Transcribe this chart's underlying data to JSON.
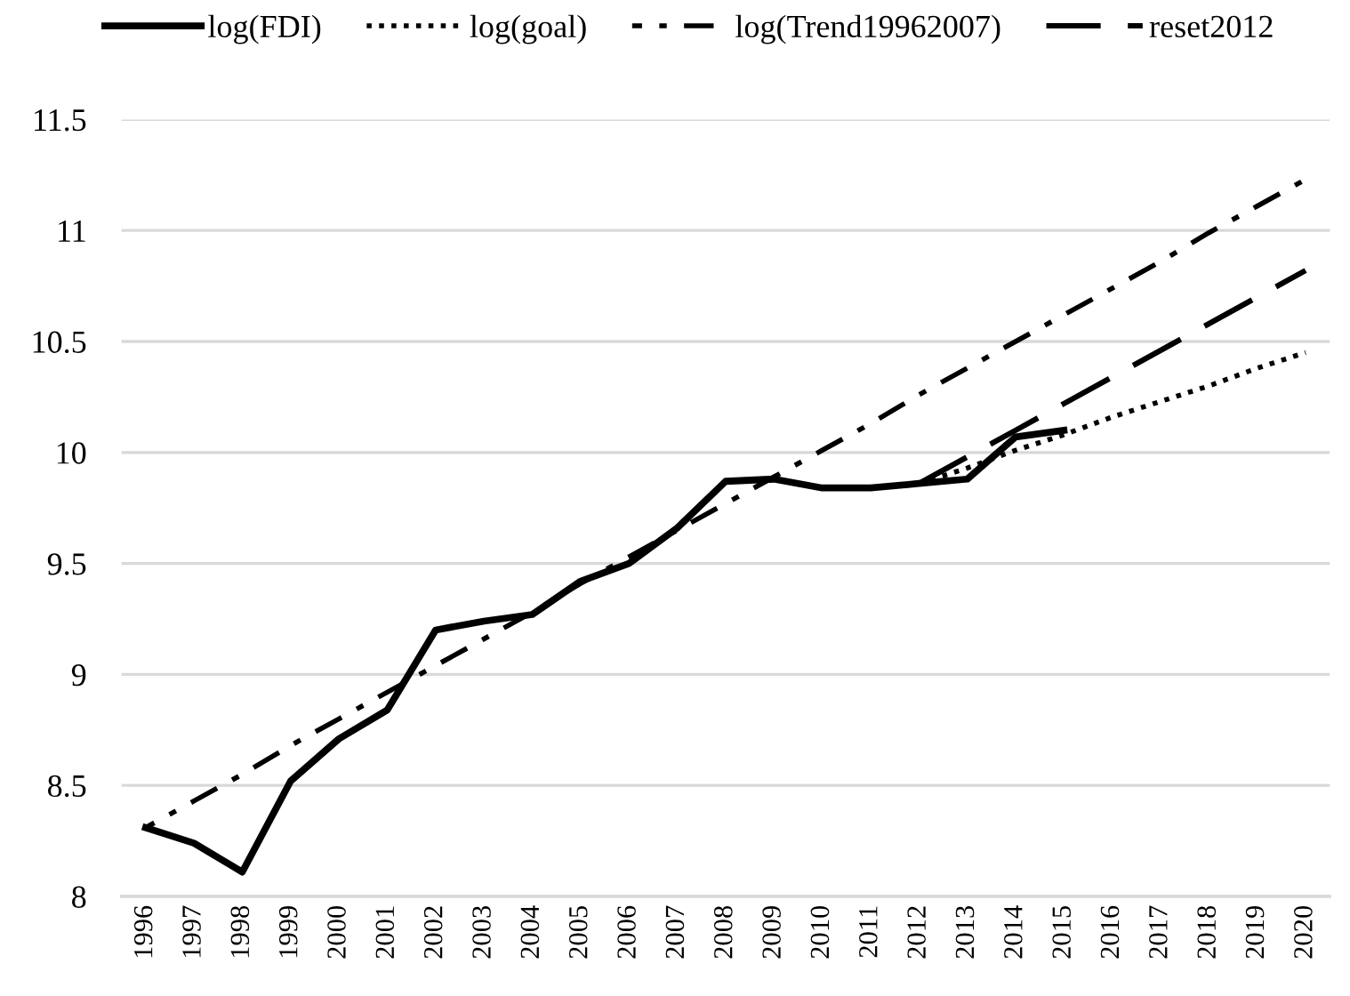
{
  "chart_data": {
    "type": "line",
    "categories": [
      "1996",
      "1997",
      "1998",
      "1999",
      "2000",
      "2001",
      "2002",
      "2003",
      "2004",
      "2005",
      "2006",
      "2007",
      "2008",
      "2009",
      "2010",
      "2011",
      "2012",
      "2013",
      "2014",
      "2015",
      "2016",
      "2017",
      "2018",
      "2019",
      "2020"
    ],
    "series": [
      {
        "name": "log(FDI)",
        "color": "#000000",
        "line_style": "solid",
        "values": [
          8.31,
          8.24,
          8.11,
          8.52,
          8.71,
          8.84,
          9.2,
          9.24,
          9.27,
          9.42,
          9.5,
          9.66,
          9.87,
          9.88,
          9.84,
          9.84,
          9.86,
          9.88,
          10.07,
          10.1,
          null,
          null,
          null,
          null,
          null
        ]
      },
      {
        "name": "log(goal)",
        "color": "#000000",
        "line_style": "dotted",
        "values": [
          null,
          null,
          null,
          null,
          null,
          null,
          null,
          null,
          null,
          null,
          null,
          null,
          null,
          null,
          null,
          null,
          9.86,
          9.93,
          10.01,
          10.08,
          10.16,
          10.23,
          10.3,
          10.38,
          10.45
        ]
      },
      {
        "name": "log(Trend19962007)",
        "color": "#000000",
        "line_style": "dashdot",
        "values": [
          8.31,
          8.43,
          8.55,
          8.68,
          8.8,
          8.92,
          9.04,
          9.16,
          9.28,
          9.41,
          9.53,
          9.65,
          9.77,
          9.89,
          10.01,
          10.13,
          10.26,
          10.38,
          10.5,
          10.62,
          10.74,
          10.86,
          10.99,
          11.11,
          11.23
        ]
      },
      {
        "name": "reset2012",
        "color": "#000000",
        "line_style": "dashed",
        "values": [
          null,
          null,
          null,
          null,
          null,
          null,
          null,
          null,
          null,
          null,
          null,
          null,
          null,
          null,
          null,
          null,
          9.86,
          9.98,
          10.1,
          10.22,
          10.34,
          10.46,
          10.58,
          10.7,
          10.82
        ]
      }
    ],
    "ylim": [
      8,
      11.5
    ],
    "yticks": [
      8,
      8.5,
      9,
      9.5,
      10,
      10.5,
      11,
      11.5
    ],
    "grid": "y",
    "legend": "top",
    "marker": "none"
  }
}
